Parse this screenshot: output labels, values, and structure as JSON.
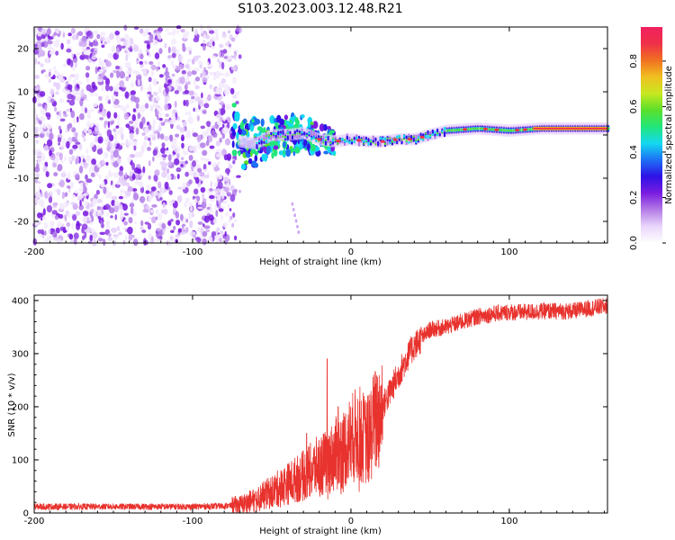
{
  "title": "S103.2023.003.12.48.R21",
  "colors": {
    "snr_line": "#e8322d",
    "colorbar_stops": [
      "#ffffff",
      "#e9d6fb",
      "#b47ce6",
      "#7a1de0",
      "#2e12e6",
      "#1e6ff5",
      "#14d9f0",
      "#22e67a",
      "#5ae02a",
      "#c8e820",
      "#f0c020",
      "#f07020",
      "#f0304a",
      "#f0205e"
    ]
  },
  "chart_data": [
    {
      "type": "heatmap",
      "title": "",
      "xlabel": "Height of straight line (km)",
      "ylabel": "Frequency (Hz)",
      "xlim": [
        -200,
        162
      ],
      "ylim": [
        -25,
        25
      ],
      "x_ticks": [
        "-200",
        "-100",
        "0",
        "100"
      ],
      "y_ticks": [
        "20",
        "10",
        "0",
        "-10",
        "-20"
      ],
      "colorbar": {
        "label": "Normalized spectral amplitude",
        "range": [
          0,
          0.95
        ],
        "ticks": [
          "0.0",
          "0.2",
          "0.4",
          "0.6",
          "0.8"
        ]
      },
      "features": {
        "noise_region_x": [
          -200,
          -70
        ],
        "signal_track": [
          {
            "x": -70,
            "y": -1.5
          },
          {
            "x": -60,
            "y": -2
          },
          {
            "x": -50,
            "y": 0
          },
          {
            "x": -40,
            "y": 0
          },
          {
            "x": -30,
            "y": 0.5
          },
          {
            "x": -20,
            "y": -1
          },
          {
            "x": -10,
            "y": -1.5
          },
          {
            "x": 0,
            "y": -1
          },
          {
            "x": 10,
            "y": -1.5
          },
          {
            "x": 20,
            "y": -1.5
          },
          {
            "x": 30,
            "y": -1
          },
          {
            "x": 40,
            "y": -1
          },
          {
            "x": 50,
            "y": 0
          },
          {
            "x": 60,
            "y": 1
          },
          {
            "x": 80,
            "y": 1.5
          },
          {
            "x": 100,
            "y": 1
          },
          {
            "x": 120,
            "y": 1.5
          },
          {
            "x": 162,
            "y": 1.5
          }
        ]
      }
    },
    {
      "type": "line",
      "title": "",
      "xlabel": "Height of straight line (km)",
      "ylabel": "SNR (10 * v/v)",
      "xlim": [
        -200,
        162
      ],
      "ylim": [
        0,
        410
      ],
      "x_ticks": [
        "-200",
        "-100",
        "0",
        "100"
      ],
      "y_ticks": [
        "400",
        "300",
        "200",
        "100",
        "0"
      ],
      "grid": false,
      "series": [
        {
          "x": [
            -200,
            -180,
            -160,
            -140,
            -120,
            -100,
            -80,
            -70,
            -60,
            -50,
            -40,
            -30,
            -20,
            -15,
            -10,
            -5,
            0,
            5,
            10,
            15,
            20,
            25,
            30,
            35,
            40,
            45,
            50,
            60,
            70,
            80,
            90,
            100,
            110,
            120,
            130,
            140,
            150,
            162
          ],
          "y": [
            12,
            12,
            12,
            12,
            12,
            12,
            13,
            15,
            25,
            40,
            55,
            70,
            90,
            95,
            110,
            120,
            140,
            150,
            135,
            170,
            200,
            230,
            260,
            290,
            315,
            330,
            345,
            350,
            360,
            370,
            375,
            378,
            378,
            380,
            380,
            380,
            385,
            390
          ]
        }
      ],
      "spikes": [
        {
          "x": -28,
          "y": 150
        },
        {
          "x": -15,
          "y": 290
        },
        {
          "x": -8,
          "y": 200
        },
        {
          "x": 8,
          "y": 210
        },
        {
          "x": 14,
          "y": 255
        }
      ]
    }
  ]
}
